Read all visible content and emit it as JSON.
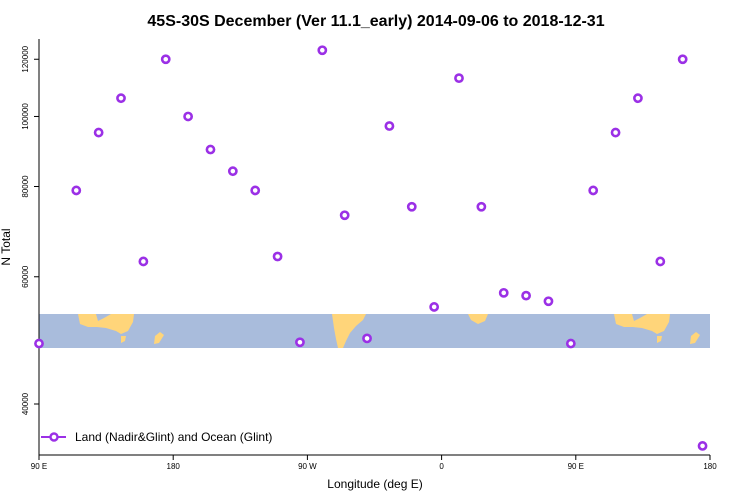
{
  "chart_data": {
    "type": "scatter",
    "title": "45S-30S December (Ver 11.1_early)   2014-09-06 to 2018-12-31",
    "xlabel": "Longitude (deg E)",
    "ylabel": "N Total",
    "xlim": [
      -90,
      180
    ],
    "x_ticks": [
      {
        "value": -90,
        "label": "90 E"
      },
      {
        "value": -36,
        "label": "180"
      },
      {
        "value": 18,
        "label": "90 W"
      },
      {
        "value": 72,
        "label": "0"
      },
      {
        "value": 126,
        "label": "90 E"
      },
      {
        "value": 180,
        "label": "180"
      }
    ],
    "y_scale": "log",
    "ylim": [
      34000,
      128000
    ],
    "y_ticks": [
      40000,
      60000,
      80000,
      100000,
      120000
    ],
    "marker_color": "#9b30e6",
    "series": [
      {
        "name": "Land (Nadir&Glint) and Ocean (Glint)",
        "x": [
          -90,
          -75,
          -66,
          -57,
          -48,
          -39,
          -30,
          -21,
          -12,
          -3,
          6,
          15,
          24,
          33,
          42,
          51,
          60,
          69,
          79,
          88,
          97,
          106,
          115,
          124,
          133,
          142,
          151,
          160,
          169,
          177
        ],
        "y": [
          48500,
          79000,
          95000,
          106000,
          63000,
          120000,
          100000,
          90000,
          84000,
          79000,
          64000,
          48700,
          123500,
          73000,
          49300,
          97000,
          75000,
          54500,
          113000,
          75000,
          57000,
          56500,
          55500,
          48500,
          79000,
          95000,
          106000,
          63000,
          120000,
          35000
        ]
      }
    ],
    "legend_position": "bottom-left",
    "grid": false,
    "map_colors": {
      "ocean": "#a9bcdc",
      "land": "#ffd57a"
    }
  }
}
